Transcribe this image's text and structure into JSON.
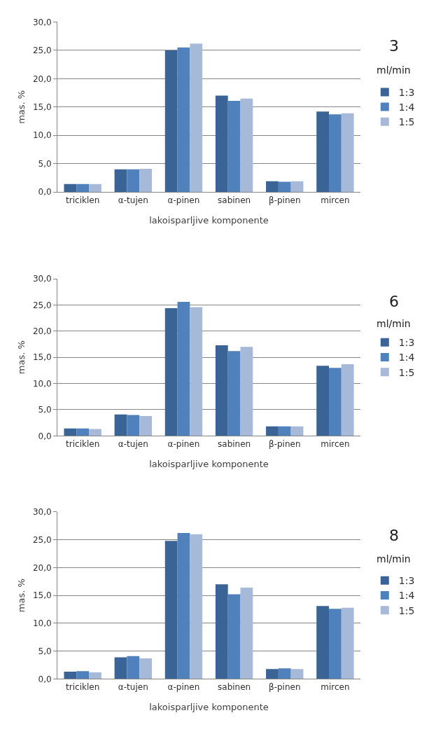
{
  "chart_data": [
    {
      "type": "bar",
      "annotations": [
        "3",
        "ml/min"
      ],
      "xlabel": "lakoisparljive komponente",
      "ylabel": "mas. %",
      "categories": [
        "triciklen",
        "α-tujen",
        "α-pinen",
        "sabinen",
        "β-pinen",
        "mircen"
      ],
      "series": [
        {
          "name": "1:3",
          "color": "#3b6496",
          "values": [
            1.4,
            4.0,
            25.0,
            17.0,
            1.9,
            14.2
          ]
        },
        {
          "name": "1:4",
          "color": "#4f81bd",
          "values": [
            1.4,
            4.0,
            25.5,
            16.1,
            1.8,
            13.7
          ]
        },
        {
          "name": "1:5",
          "color": "#a7b9d9",
          "values": [
            1.4,
            4.1,
            26.2,
            16.5,
            1.9,
            13.9
          ]
        }
      ],
      "ylim": [
        0,
        30
      ],
      "yticks": [
        {
          "value": 0,
          "label": "0,0"
        },
        {
          "value": 5,
          "label": "5,0"
        },
        {
          "value": 10,
          "label": "10,0"
        },
        {
          "value": 15,
          "label": "15,0"
        },
        {
          "value": 20,
          "label": "20,0"
        },
        {
          "value": 25,
          "label": "25,0"
        },
        {
          "value": 30,
          "label": "30,0"
        }
      ],
      "grid": "y",
      "legend": "right"
    },
    {
      "type": "bar",
      "annotations": [
        "6",
        "ml/min"
      ],
      "xlabel": "lakoisparljive komponente",
      "ylabel": "mas. %",
      "categories": [
        "triciklen",
        "α-tujen",
        "α-pinen",
        "sabinen",
        "β-pinen",
        "mircen"
      ],
      "series": [
        {
          "name": "1:3",
          "color": "#3b6496",
          "values": [
            1.4,
            4.1,
            24.4,
            17.3,
            1.8,
            13.4
          ]
        },
        {
          "name": "1:4",
          "color": "#4f81bd",
          "values": [
            1.4,
            4.0,
            25.6,
            16.2,
            1.8,
            13.0
          ]
        },
        {
          "name": "1:5",
          "color": "#a7b9d9",
          "values": [
            1.3,
            3.8,
            24.6,
            17.0,
            1.8,
            13.7
          ]
        }
      ],
      "ylim": [
        0,
        30
      ],
      "yticks": [
        {
          "value": 0,
          "label": "0,0"
        },
        {
          "value": 5,
          "label": "5,0"
        },
        {
          "value": 10,
          "label": "10,0"
        },
        {
          "value": 15,
          "label": "15,0"
        },
        {
          "value": 20,
          "label": "20,0"
        },
        {
          "value": 25,
          "label": "25,0"
        },
        {
          "value": 30,
          "label": "30,0"
        }
      ],
      "grid": "y",
      "legend": "right"
    },
    {
      "type": "bar",
      "annotations": [
        "8",
        "ml/min"
      ],
      "xlabel": "lakoisparljive komponente",
      "ylabel": "mas. %",
      "categories": [
        "triciklen",
        "α-tujen",
        "α-pinen",
        "sabinen",
        "β-pinen",
        "mircen"
      ],
      "series": [
        {
          "name": "1:3",
          "color": "#3b6496",
          "values": [
            1.3,
            3.9,
            24.8,
            17.0,
            1.8,
            13.1
          ]
        },
        {
          "name": "1:4",
          "color": "#4f81bd",
          "values": [
            1.4,
            4.1,
            26.2,
            15.2,
            1.9,
            12.6
          ]
        },
        {
          "name": "1:5",
          "color": "#a7b9d9",
          "values": [
            1.2,
            3.7,
            26.0,
            16.4,
            1.8,
            12.8
          ]
        }
      ],
      "ylim": [
        0,
        30
      ],
      "yticks": [
        {
          "value": 0,
          "label": "0,0"
        },
        {
          "value": 5,
          "label": "5,0"
        },
        {
          "value": 10,
          "label": "10,0"
        },
        {
          "value": 15,
          "label": "15,0"
        },
        {
          "value": 20,
          "label": "20,0"
        },
        {
          "value": 25,
          "label": "25,0"
        },
        {
          "value": 30,
          "label": "30,0"
        }
      ],
      "grid": "y",
      "legend": "right"
    }
  ]
}
